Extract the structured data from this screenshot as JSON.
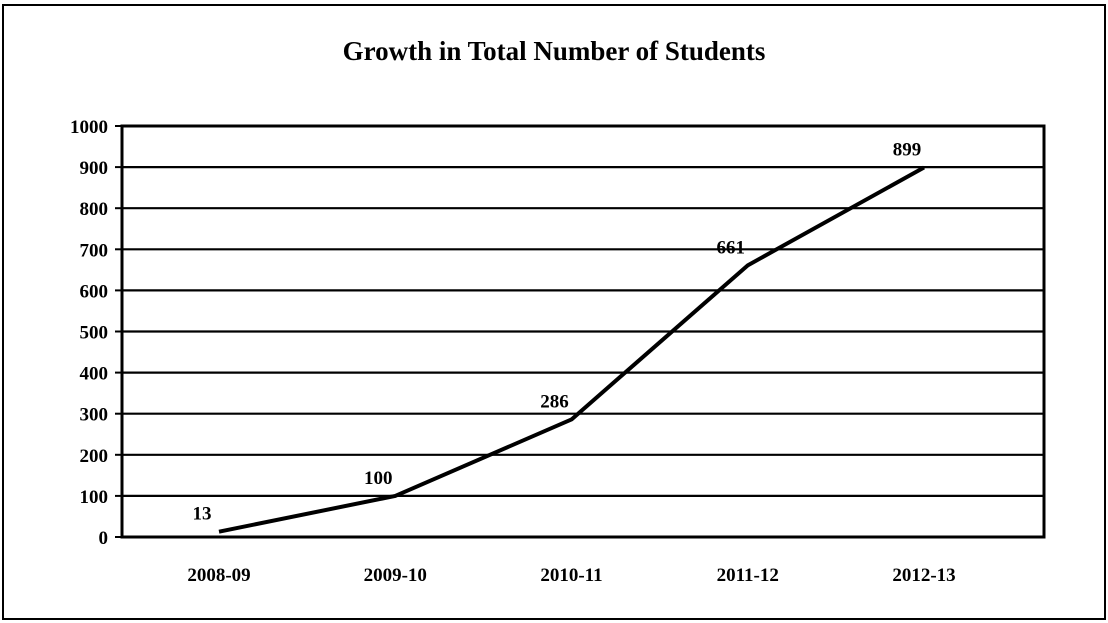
{
  "chart_data": {
    "type": "line",
    "title": "Growth in Total Number of Students",
    "categories": [
      "2008-09",
      "2009-10",
      "2010-11",
      "2011-12",
      "2012-13"
    ],
    "series": [
      {
        "values": [
          13,
          100,
          286,
          661,
          899
        ],
        "data_labels": [
          "13",
          "100",
          "286",
          "661",
          "899"
        ]
      }
    ],
    "xlabel": "",
    "ylabel": "",
    "ylim": [
      0,
      1000
    ],
    "yticks": [
      0,
      100,
      200,
      300,
      400,
      500,
      600,
      700,
      800,
      900,
      1000
    ],
    "grid": true,
    "legend": "none",
    "colors": {
      "line": "#000000",
      "grid": "#000000",
      "background": "#ffffff"
    }
  }
}
